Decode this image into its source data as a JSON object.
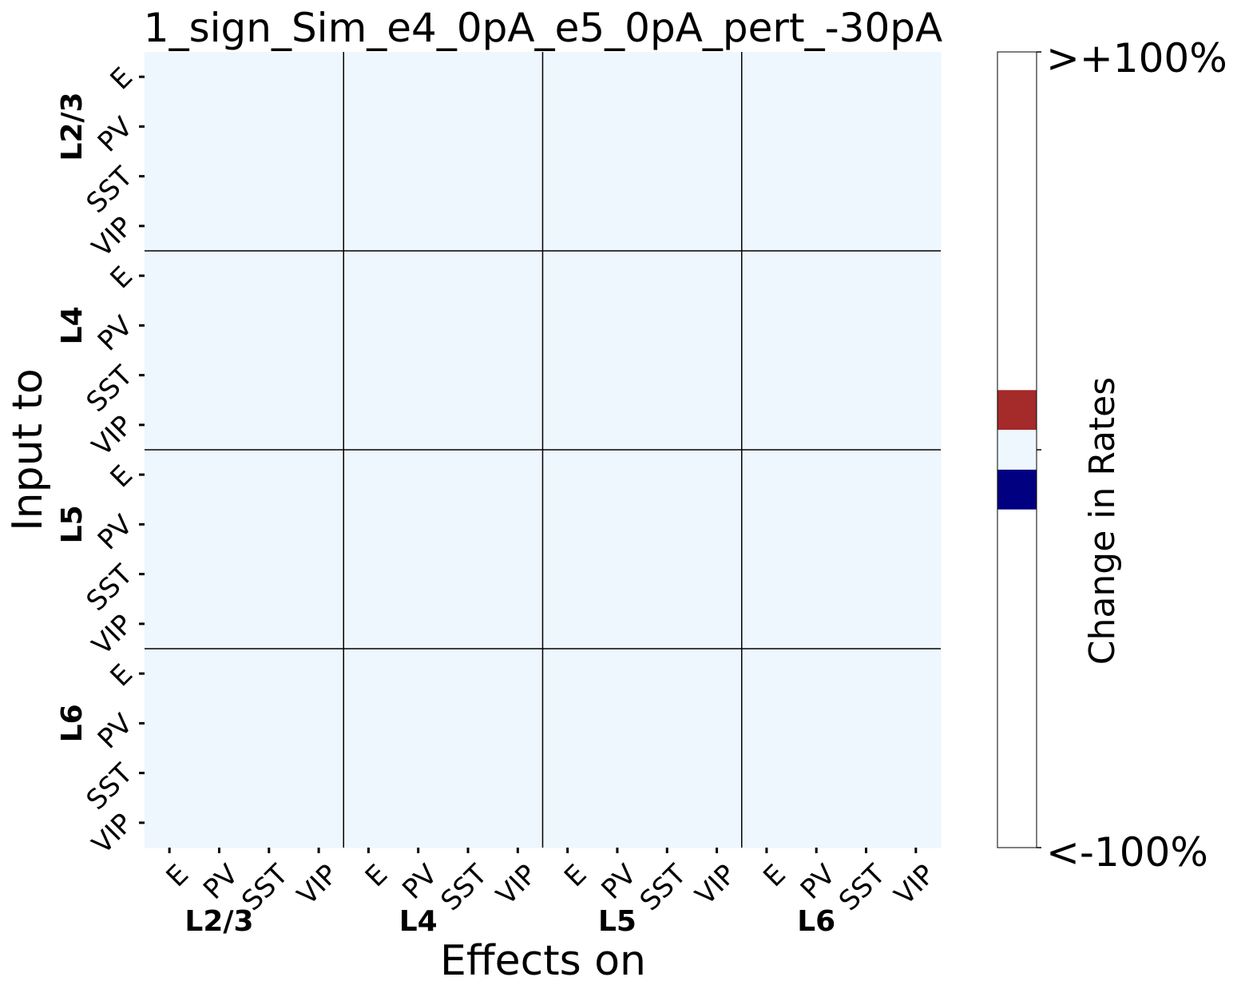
{
  "chart_data": {
    "type": "heatmap",
    "title": "1_sign_Sim_e4_0pA_e5_0pA_pert_-30pA",
    "xlabel": "Effects on",
    "ylabel": "Input to",
    "groups": [
      "L2/3",
      "L4",
      "L5",
      "L6"
    ],
    "cell_types": [
      "E",
      "PV",
      "SST",
      "VIP"
    ],
    "rows": 16,
    "cols": 16,
    "fill_value": 0,
    "colorbar": {
      "label": "Change in Rates",
      "max_label": ">+100%",
      "min_label": "<-100%",
      "range": [
        -1,
        1
      ],
      "colors": {
        "zero": "#eef6fe",
        "positive": "#a52a2a",
        "negative": "#000080",
        "saturated": "#ffffff"
      },
      "bands": [
        {
          "from": 0.05,
          "to": 0.15,
          "color": "#a52a2a"
        },
        {
          "from": -0.05,
          "to": 0.05,
          "color": "#eef6fe"
        },
        {
          "from": -0.15,
          "to": -0.05,
          "color": "#000080"
        }
      ]
    }
  }
}
